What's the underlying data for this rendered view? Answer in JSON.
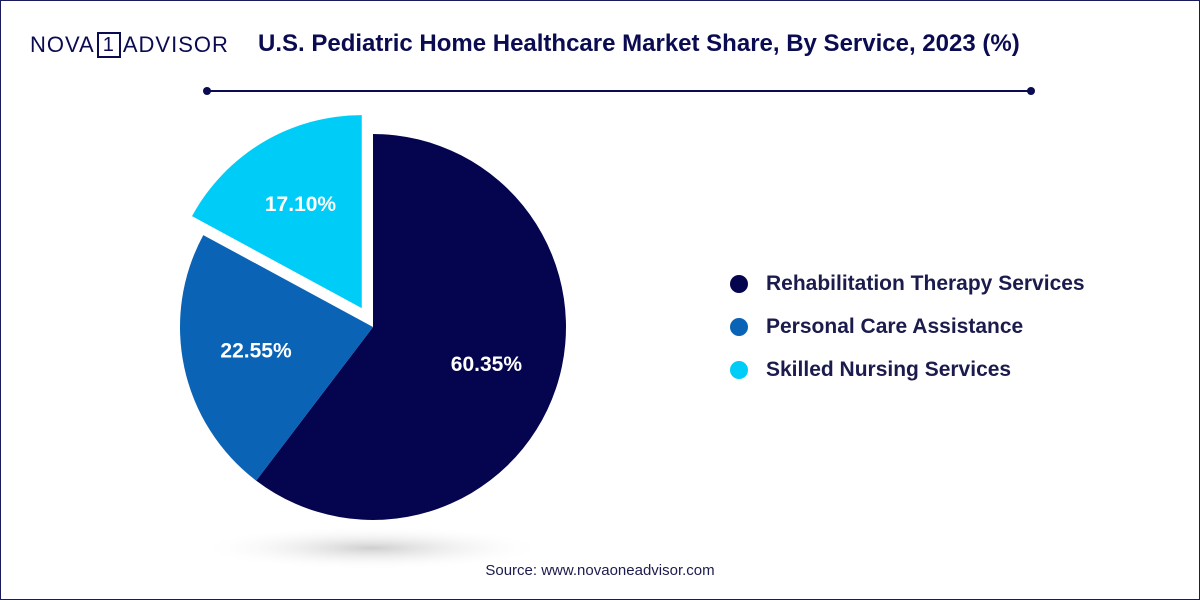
{
  "header": {
    "logo": {
      "left": "NOVA",
      "mid": "1",
      "right": "ADVISOR"
    },
    "title": "U.S. Pediatric Home Healthcare Market Share, By Service, 2023 (%)"
  },
  "source": "Source: www.novaoneadvisor.com",
  "chart_data": {
    "type": "pie",
    "title": "U.S. Pediatric Home Healthcare Market Share, By Service, 2023 (%)",
    "categories": [
      "Rehabilitation Therapy Services",
      "Personal Care Assistance",
      "Skilled Nursing Services"
    ],
    "values": [
      60.35,
      22.55,
      17.1
    ],
    "labels": [
      "60.35%",
      "22.55%",
      "17.10%"
    ],
    "colors": [
      "#05054f",
      "#0b63b5",
      "#00cdf7"
    ],
    "exploded": "Skilled Nursing Services",
    "legend_position": "right"
  }
}
